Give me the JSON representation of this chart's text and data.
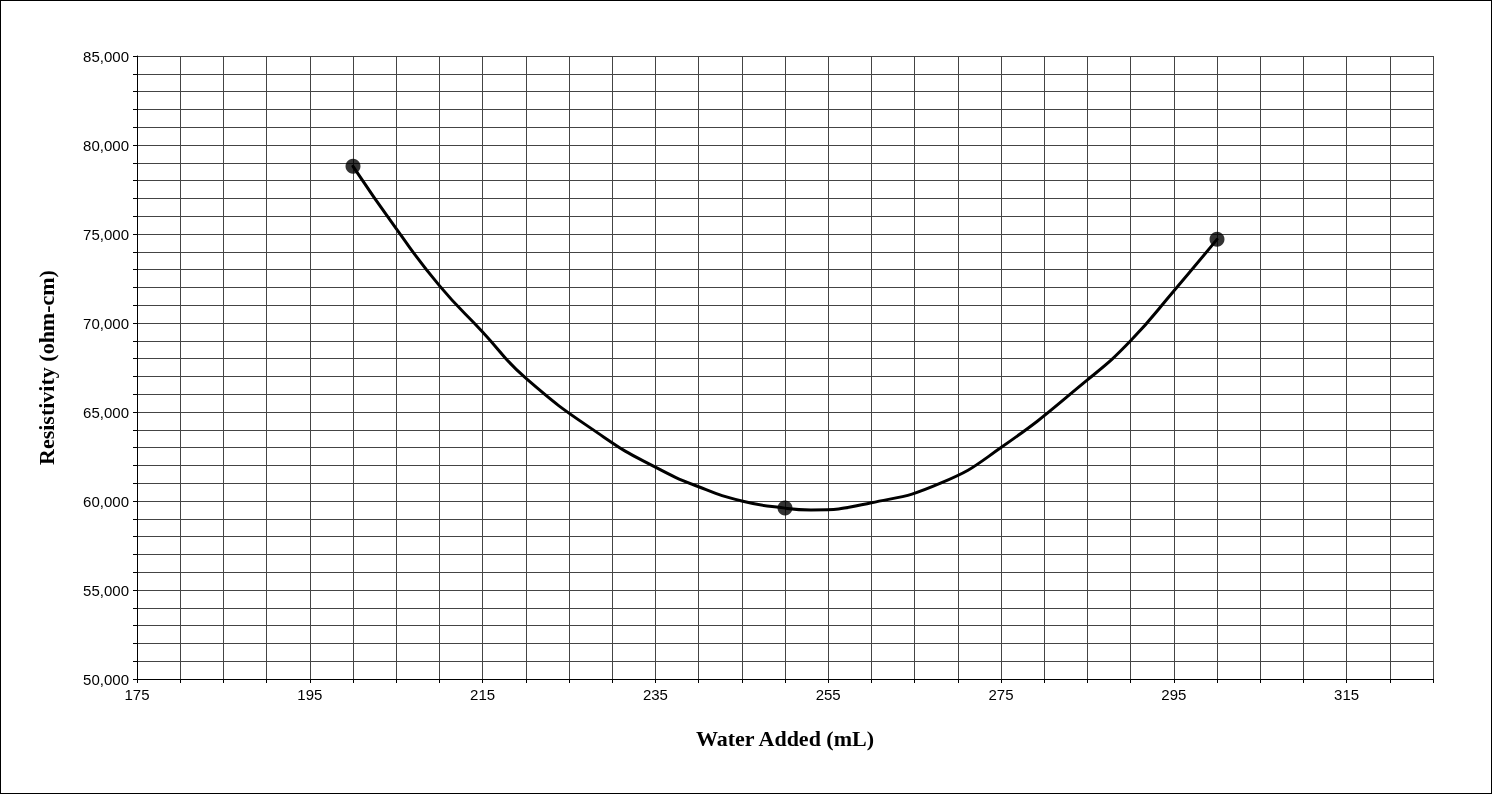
{
  "chart_data": {
    "type": "line",
    "xlabel": "Water Added (mL)",
    "ylabel": "Resistivity (ohm-cm)",
    "xlim": [
      175,
      325
    ],
    "xticks": [
      175,
      {
        "value": 180,
        "label": null
      },
      {
        "value": 185,
        "label": null
      },
      {
        "value": 190,
        "label": null
      },
      195,
      {
        "value": 200,
        "label": null
      },
      {
        "value": 205,
        "label": null
      },
      {
        "value": 210,
        "label": null
      },
      215,
      {
        "value": 220,
        "label": null
      },
      {
        "value": 225,
        "label": null
      },
      {
        "value": 230,
        "label": null
      },
      235,
      {
        "value": 240,
        "label": null
      },
      {
        "value": 245,
        "label": null
      },
      {
        "value": 250,
        "label": null
      },
      255,
      {
        "value": 260,
        "label": null
      },
      {
        "value": 265,
        "label": null
      },
      {
        "value": 270,
        "label": null
      },
      275,
      {
        "value": 280,
        "label": null
      },
      {
        "value": 285,
        "label": null
      },
      {
        "value": 290,
        "label": null
      },
      295,
      {
        "value": 300,
        "label": null
      },
      {
        "value": 305,
        "label": null
      },
      {
        "value": 310,
        "label": null
      },
      315,
      {
        "value": 320,
        "label": null
      },
      {
        "value": 325,
        "label": null
      }
    ],
    "ylim": [
      50000,
      85000
    ],
    "yticks": [
      {
        "value": 50000,
        "label": "50,000"
      },
      {
        "value": 51000,
        "label": null
      },
      {
        "value": 52000,
        "label": null
      },
      {
        "value": 53000,
        "label": null
      },
      {
        "value": 54000,
        "label": null
      },
      {
        "value": 55000,
        "label": "55,000"
      },
      {
        "value": 56000,
        "label": null
      },
      {
        "value": 57000,
        "label": null
      },
      {
        "value": 58000,
        "label": null
      },
      {
        "value": 59000,
        "label": null
      },
      {
        "value": 60000,
        "label": "60,000"
      },
      {
        "value": 61000,
        "label": null
      },
      {
        "value": 62000,
        "label": null
      },
      {
        "value": 63000,
        "label": null
      },
      {
        "value": 64000,
        "label": null
      },
      {
        "value": 65000,
        "label": "65,000"
      },
      {
        "value": 66000,
        "label": null
      },
      {
        "value": 67000,
        "label": null
      },
      {
        "value": 68000,
        "label": null
      },
      {
        "value": 69000,
        "label": null
      },
      {
        "value": 70000,
        "label": "70,000"
      },
      {
        "value": 71000,
        "label": null
      },
      {
        "value": 72000,
        "label": null
      },
      {
        "value": 73000,
        "label": null
      },
      {
        "value": 74000,
        "label": null
      },
      {
        "value": 75000,
        "label": "75,000"
      },
      {
        "value": 76000,
        "label": null
      },
      {
        "value": 77000,
        "label": null
      },
      {
        "value": 78000,
        "label": null
      },
      {
        "value": 79000,
        "label": null
      },
      {
        "value": 80000,
        "label": "80,000"
      },
      {
        "value": 81000,
        "label": null
      },
      {
        "value": 82000,
        "label": null
      },
      {
        "value": 83000,
        "label": null
      },
      {
        "value": 84000,
        "label": null
      },
      {
        "value": 85000,
        "label": "85,000"
      }
    ],
    "grid": true,
    "series": [
      {
        "color": "#000000",
        "marker": "none",
        "line_style": "solid",
        "x": [
          200,
          205,
          210,
          215,
          220,
          229,
          235,
          240,
          245,
          250,
          253,
          260,
          268,
          275,
          285,
          290,
          295,
          300
        ],
        "values": [
          78800,
          75300,
          72100,
          69500,
          66900,
          63600,
          61900,
          60800,
          60000,
          59600,
          59500,
          59900,
          61000,
          63000,
          66800,
          69000,
          71800,
          74700
        ]
      },
      {
        "type": "scatter",
        "color": "#000000",
        "marker": "circle",
        "x": [
          200,
          250,
          300
        ],
        "values": [
          78800,
          59600,
          74700
        ]
      }
    ]
  }
}
